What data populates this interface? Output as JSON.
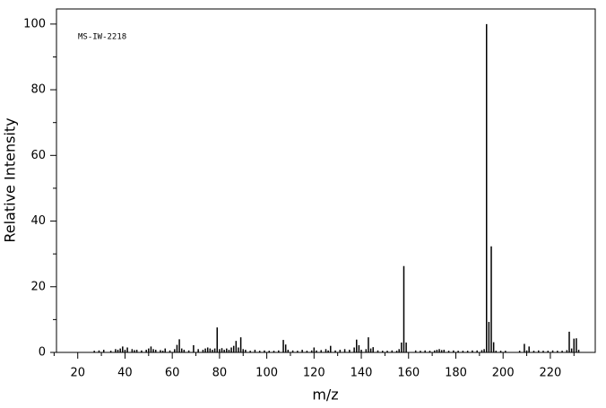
{
  "chart_data": {
    "type": "stem",
    "annotation": "MS-IW-2218",
    "xlabel": "m/z",
    "ylabel": "Relative Intensity",
    "color": "#000000",
    "xlim": [
      11,
      239
    ],
    "ylim": [
      0,
      104.6
    ],
    "xticks": [
      20,
      40,
      60,
      80,
      100,
      120,
      140,
      160,
      180,
      200,
      220
    ],
    "xminorticks": [
      10,
      30,
      50,
      70,
      90,
      110,
      130,
      150,
      170,
      190,
      210,
      230
    ],
    "yticks": [
      0,
      20,
      40,
      60,
      80,
      100
    ],
    "yminorticks": [
      10,
      30,
      50,
      70,
      90
    ],
    "x": [
      27,
      29,
      31,
      34,
      36,
      37,
      38,
      39,
      40,
      41,
      43,
      44,
      45,
      47,
      49,
      50,
      51,
      52,
      53,
      55,
      56,
      57,
      59,
      61,
      62,
      63,
      64,
      65,
      67,
      69,
      71,
      73,
      74,
      75,
      76,
      77,
      78,
      79,
      80,
      81,
      82,
      83,
      84,
      85,
      86,
      87,
      88,
      89,
      90,
      91,
      93,
      95,
      97,
      99,
      101,
      103,
      105,
      107,
      108,
      109,
      111,
      113,
      115,
      117,
      119,
      120,
      121,
      123,
      125,
      126,
      127,
      129,
      131,
      133,
      135,
      137,
      138,
      139,
      140,
      142,
      143,
      144,
      145,
      147,
      149,
      151,
      153,
      155,
      156,
      157,
      158,
      159,
      163,
      165,
      167,
      169,
      171,
      172,
      173,
      174,
      175,
      177,
      179,
      181,
      183,
      185,
      187,
      189,
      191,
      192,
      193,
      194,
      195,
      196,
      197,
      199,
      201,
      207,
      209,
      210,
      211,
      213,
      215,
      217,
      219,
      221,
      223,
      225,
      227,
      228,
      229,
      230,
      231,
      232
    ],
    "values": [
      0.5,
      0.6,
      0.8,
      0.5,
      1,
      0.8,
      1.2,
      1.8,
      0.8,
      1.5,
      1,
      0.7,
      0.8,
      0.6,
      0.8,
      1.2,
      1.8,
      1,
      0.8,
      0.7,
      0.5,
      1.2,
      0.6,
      1,
      2.3,
      4,
      1.2,
      0.8,
      0.6,
      2.2,
      1,
      0.8,
      1.2,
      1.5,
      1.2,
      0.8,
      1.2,
      7.6,
      1,
      1.3,
      0.8,
      1.2,
      0.8,
      1.5,
      2,
      3.5,
      1.5,
      4.6,
      1,
      0.8,
      0.5,
      0.8,
      0.5,
      0.6,
      0.5,
      0.5,
      0.6,
      3.8,
      2.4,
      0.8,
      0.6,
      0.5,
      0.8,
      0.5,
      0.6,
      1.5,
      0.6,
      0.7,
      1,
      0.6,
      2,
      0.6,
      0.8,
      1,
      0.8,
      1.5,
      3.9,
      2.2,
      0.8,
      1,
      4.6,
      1.2,
      1.6,
      0.6,
      0.5,
      0.5,
      0.6,
      0.5,
      1,
      3,
      26.3,
      3,
      0.6,
      0.5,
      0.6,
      0.5,
      0.6,
      0.8,
      1,
      0.7,
      0.8,
      0.5,
      0.6,
      0.5,
      0.5,
      0.5,
      0.6,
      0.6,
      0.7,
      1,
      100,
      9.3,
      32.3,
      3.1,
      0.5,
      0.5,
      0.5,
      0.5,
      2.6,
      0.6,
      1.8,
      0.5,
      0.6,
      0.5,
      0.5,
      0.6,
      0.5,
      0.5,
      0.7,
      6.3,
      1.2,
      4.2,
      4.3,
      0.8
    ]
  }
}
